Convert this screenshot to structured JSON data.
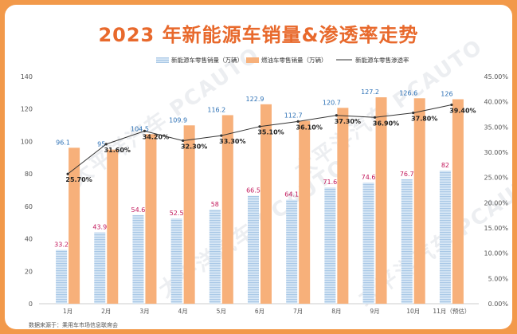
{
  "title": "2023 年新能源车销量&渗透率走势",
  "source": "数据来源于：乘用车市场信息联席会",
  "watermark": "太平洋汽车 PCAUTO",
  "chart_data": {
    "type": "bar",
    "categories": [
      "1月",
      "2月",
      "3月",
      "4月",
      "5月",
      "6月",
      "7月",
      "8月",
      "9月",
      "10月",
      "11月（预估）"
    ],
    "series": [
      {
        "name": "新能源车零售销量（万辆）",
        "kind": "bar",
        "color": "#c6dcf0",
        "label_color": "#c2185b",
        "values": [
          33.2,
          43.9,
          54.6,
          52.5,
          58,
          66.5,
          64.1,
          71.6,
          74.6,
          76.7,
          82
        ]
      },
      {
        "name": "燃油车零售销量（万辆）",
        "kind": "bar",
        "color": "#f7b07a",
        "label_color": "#2a6fb5",
        "values": [
          96.1,
          95,
          104.5,
          109.9,
          116.2,
          122.9,
          112.7,
          120.7,
          127.2,
          126.6,
          126
        ]
      },
      {
        "name": "新能源车零售渗透率",
        "kind": "line",
        "axis": "right",
        "color": "#333333",
        "values": [
          25.7,
          31.6,
          34.2,
          32.3,
          33.3,
          35.1,
          36.1,
          37.3,
          36.9,
          37.8,
          39.4
        ],
        "labels": [
          "25.70%",
          "31.60%",
          "34.20%",
          "32.30%",
          "33.30%",
          "35.10%",
          "36.10%",
          "37.30%",
          "36.90%",
          "37.80%",
          "39.40%"
        ]
      }
    ],
    "ylim": [
      0,
      140
    ],
    "yticks": [
      0,
      20,
      40,
      60,
      80,
      100,
      120,
      140
    ],
    "y2lim": [
      0,
      45
    ],
    "y2ticks": [
      "0.00%",
      "5.00%",
      "10.00%",
      "15.00%",
      "20.00%",
      "25.00%",
      "30.00%",
      "35.00%",
      "40.00%",
      "45.00%"
    ],
    "legend": "top"
  }
}
